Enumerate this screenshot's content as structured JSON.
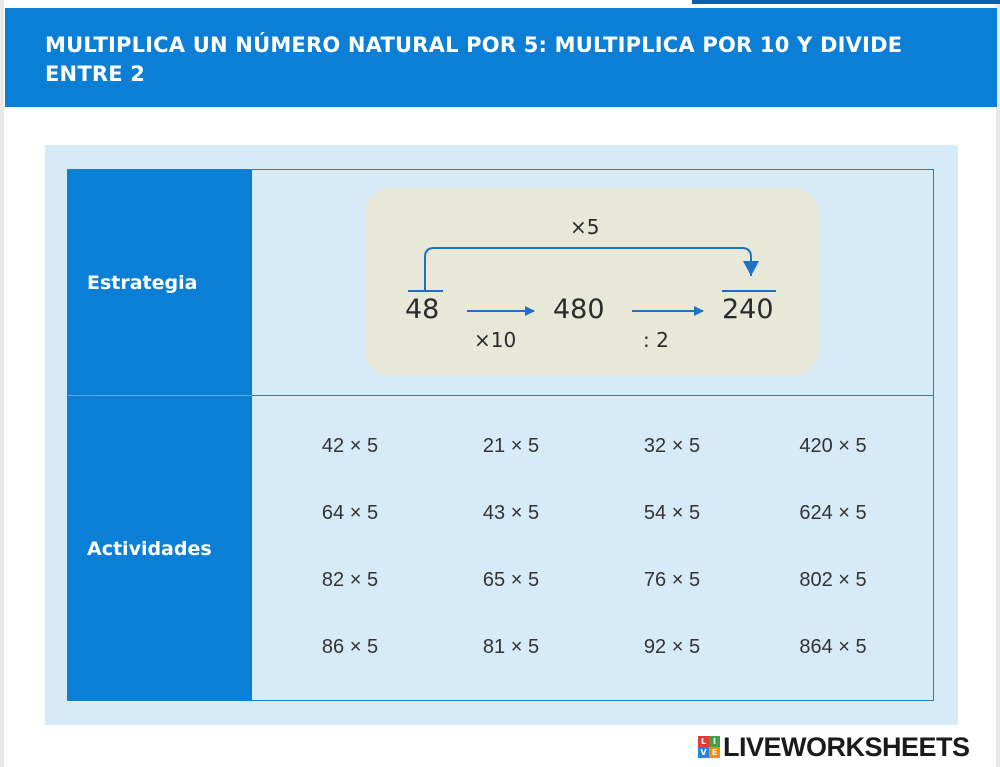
{
  "title": "MULTIPLICA UN NÚMERO NATURAL POR 5: MULTIPLICA POR 10 Y DIVIDE ENTRE 2",
  "rows": {
    "strategy_label": "Estrategia",
    "activities_label": "Actividades"
  },
  "strategy": {
    "start": "48",
    "middle": "480",
    "end": "240",
    "times5": "×5",
    "times10": "×10",
    "divide2": ": 2"
  },
  "activities": [
    [
      "42 × 5",
      "21 × 5",
      "32 × 5",
      "420 × 5"
    ],
    [
      "64 × 5",
      "43 × 5",
      "54 × 5",
      "624 × 5"
    ],
    [
      "82 × 5",
      "65 × 5",
      "76 × 5",
      "802 × 5"
    ],
    [
      "86 × 5",
      "81 × 5",
      "92 × 5",
      "864 × 5"
    ]
  ],
  "watermark": {
    "text": "LIVEWORKSHEETS",
    "logo_letters": [
      "L",
      "I",
      "V",
      "E"
    ]
  },
  "colors": {
    "header_blue": "#0b7ed6",
    "panel_light_blue": "#d7eaf7",
    "strategy_box": "#e8e8d8"
  }
}
